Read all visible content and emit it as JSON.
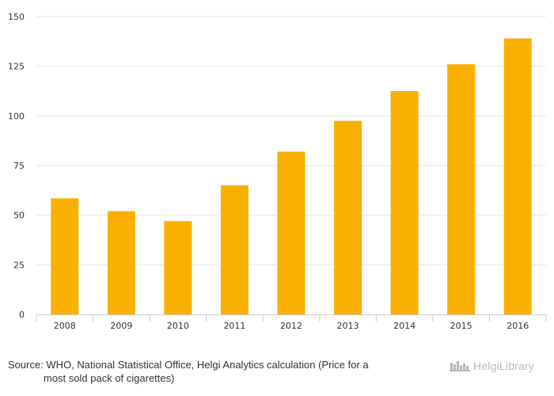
{
  "chart_data": {
    "type": "bar",
    "categories": [
      "2008",
      "2009",
      "2010",
      "2011",
      "2012",
      "2013",
      "2014",
      "2015",
      "2016"
    ],
    "values": [
      58.5,
      52,
      47,
      65,
      82,
      97.5,
      112.5,
      126,
      139
    ],
    "title": "",
    "xlabel": "",
    "ylabel": "",
    "ylim": [
      0,
      150
    ],
    "yticks": [
      0,
      25,
      50,
      75,
      100,
      125,
      150
    ],
    "grid": true,
    "bar_color": "#F9B000"
  },
  "footer": {
    "source_line1": "Source: WHO, National Statistical Office, Helgi Analytics calculation (Price for a",
    "source_line2": "most sold pack of cigarettes)",
    "logo_text": "HelgiLibrary"
  },
  "colors": {
    "grid": "#e6e6e6",
    "axis": "#cccccc",
    "tick_label": "#333333",
    "logo": "#b8b8b8"
  },
  "icons": {
    "logo": "helgi-library-logo-icon"
  }
}
